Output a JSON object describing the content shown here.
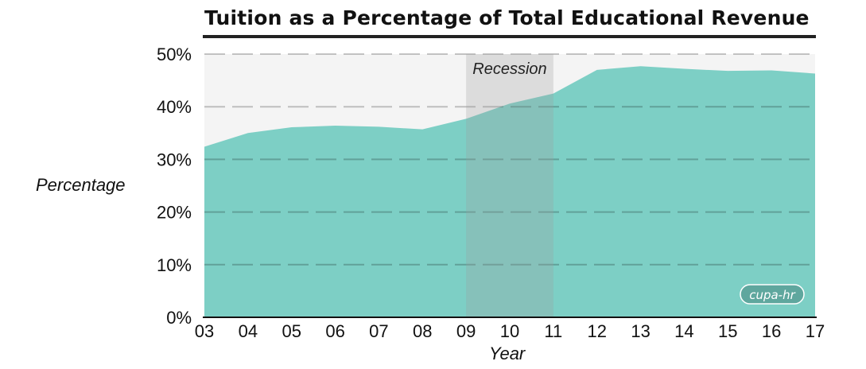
{
  "chart_data": {
    "type": "area",
    "title": "Tuition as a Percentage of Total Educational Revenue",
    "xlabel": "Year",
    "ylabel": "Percentage",
    "x": [
      "03",
      "04",
      "05",
      "06",
      "07",
      "08",
      "09",
      "10",
      "11",
      "12",
      "13",
      "14",
      "15",
      "16",
      "17"
    ],
    "series": [
      {
        "values": [
          32.4,
          35.0,
          36.1,
          36.4,
          36.2,
          35.7,
          37.7,
          40.6,
          42.5,
          47.0,
          47.7,
          47.2,
          46.8,
          46.9,
          46.3
        ]
      }
    ],
    "ylim": [
      0,
      50
    ],
    "y_ticks": [
      "0%",
      "10%",
      "20%",
      "30%",
      "40%",
      "50%"
    ],
    "annotations": [
      {
        "label": "Recession",
        "x_start": "09",
        "x_end": "11"
      }
    ],
    "grid": "dashed horizontal",
    "fill_color": "#7dcfc5",
    "background_color": "#f4f4f4",
    "recession_color": "#9e9e9e",
    "logo": "cupa-hr"
  }
}
